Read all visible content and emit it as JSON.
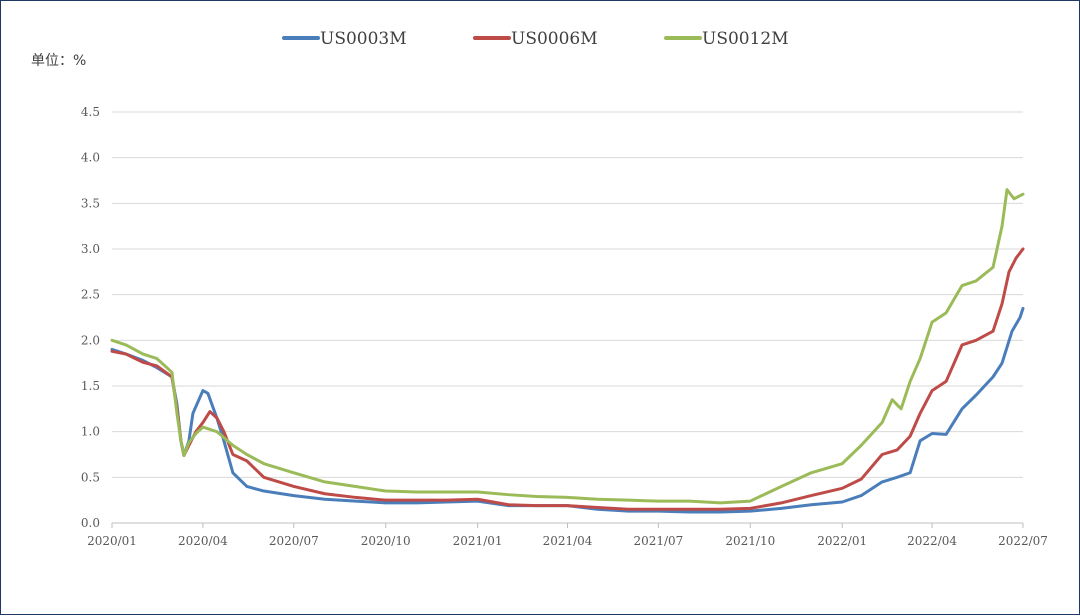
{
  "chart_data": {
    "type": "line",
    "title": "",
    "unit_label": "单位：%",
    "ylabel": "",
    "xlabel": "",
    "ylim": [
      0,
      4.5
    ],
    "y_ticks": [
      "0.0",
      "0.5",
      "1.0",
      "1.5",
      "2.0",
      "2.5",
      "3.0",
      "3.5",
      "4.0",
      "4.5"
    ],
    "x_range": [
      "2020-01-01",
      "2022-07-01"
    ],
    "x_ticks": [
      {
        "date": "2020-01-01",
        "label": "2020/01"
      },
      {
        "date": "2020-04-01",
        "label": "2020/04"
      },
      {
        "date": "2020-07-01",
        "label": "2020/07"
      },
      {
        "date": "2020-10-01",
        "label": "2020/10"
      },
      {
        "date": "2021-01-01",
        "label": "2021/01"
      },
      {
        "date": "2021-04-01",
        "label": "2021/04"
      },
      {
        "date": "2021-07-01",
        "label": "2021/07"
      },
      {
        "date": "2021-10-01",
        "label": "2021/10"
      },
      {
        "date": "2022-01-01",
        "label": "2022/01"
      },
      {
        "date": "2022-04-01",
        "label": "2022/04"
      },
      {
        "date": "2022-07-01",
        "label": "2022/07"
      }
    ],
    "grid": true,
    "legend_position": "top-center",
    "series": [
      {
        "name": "US0003M",
        "color": "#4a7ebb",
        "points": [
          [
            "2020-01-01",
            1.9
          ],
          [
            "2020-01-15",
            1.85
          ],
          [
            "2020-02-01",
            1.78
          ],
          [
            "2020-02-15",
            1.7
          ],
          [
            "2020-03-01",
            1.6
          ],
          [
            "2020-03-06",
            1.3
          ],
          [
            "2020-03-10",
            0.9
          ],
          [
            "2020-03-13",
            0.74
          ],
          [
            "2020-03-18",
            0.9
          ],
          [
            "2020-03-22",
            1.2
          ],
          [
            "2020-03-28",
            1.35
          ],
          [
            "2020-04-01",
            1.45
          ],
          [
            "2020-04-06",
            1.42
          ],
          [
            "2020-04-15",
            1.15
          ],
          [
            "2020-04-22",
            0.9
          ],
          [
            "2020-05-01",
            0.55
          ],
          [
            "2020-05-15",
            0.4
          ],
          [
            "2020-06-01",
            0.35
          ],
          [
            "2020-07-01",
            0.3
          ],
          [
            "2020-08-01",
            0.26
          ],
          [
            "2020-09-01",
            0.24
          ],
          [
            "2020-10-01",
            0.22
          ],
          [
            "2020-11-01",
            0.22
          ],
          [
            "2020-12-01",
            0.23
          ],
          [
            "2021-01-01",
            0.24
          ],
          [
            "2021-02-01",
            0.19
          ],
          [
            "2021-03-01",
            0.19
          ],
          [
            "2021-04-01",
            0.19
          ],
          [
            "2021-05-01",
            0.15
          ],
          [
            "2021-06-01",
            0.13
          ],
          [
            "2021-07-01",
            0.13
          ],
          [
            "2021-08-01",
            0.12
          ],
          [
            "2021-09-01",
            0.12
          ],
          [
            "2021-10-01",
            0.13
          ],
          [
            "2021-11-01",
            0.16
          ],
          [
            "2021-12-01",
            0.2
          ],
          [
            "2022-01-01",
            0.23
          ],
          [
            "2022-01-20",
            0.3
          ],
          [
            "2022-02-10",
            0.45
          ],
          [
            "2022-02-25",
            0.5
          ],
          [
            "2022-03-10",
            0.55
          ],
          [
            "2022-03-20",
            0.9
          ],
          [
            "2022-04-01",
            0.98
          ],
          [
            "2022-04-15",
            0.97
          ],
          [
            "2022-05-01",
            1.25
          ],
          [
            "2022-05-15",
            1.4
          ],
          [
            "2022-06-01",
            1.6
          ],
          [
            "2022-06-10",
            1.75
          ],
          [
            "2022-06-20",
            2.1
          ],
          [
            "2022-06-28",
            2.25
          ],
          [
            "2022-07-01",
            2.35
          ]
        ]
      },
      {
        "name": "US0006M",
        "color": "#be4b48",
        "points": [
          [
            "2020-01-01",
            1.88
          ],
          [
            "2020-01-15",
            1.85
          ],
          [
            "2020-02-01",
            1.76
          ],
          [
            "2020-02-15",
            1.72
          ],
          [
            "2020-03-01",
            1.6
          ],
          [
            "2020-03-06",
            1.25
          ],
          [
            "2020-03-10",
            0.9
          ],
          [
            "2020-03-13",
            0.74
          ],
          [
            "2020-03-18",
            0.85
          ],
          [
            "2020-03-25",
            1.0
          ],
          [
            "2020-04-01",
            1.1
          ],
          [
            "2020-04-08",
            1.22
          ],
          [
            "2020-04-15",
            1.15
          ],
          [
            "2020-04-22",
            1.0
          ],
          [
            "2020-05-01",
            0.75
          ],
          [
            "2020-05-15",
            0.68
          ],
          [
            "2020-06-01",
            0.5
          ],
          [
            "2020-07-01",
            0.4
          ],
          [
            "2020-08-01",
            0.32
          ],
          [
            "2020-09-01",
            0.28
          ],
          [
            "2020-10-01",
            0.25
          ],
          [
            "2020-11-01",
            0.25
          ],
          [
            "2020-12-01",
            0.25
          ],
          [
            "2021-01-01",
            0.26
          ],
          [
            "2021-02-01",
            0.2
          ],
          [
            "2021-03-01",
            0.19
          ],
          [
            "2021-04-01",
            0.19
          ],
          [
            "2021-05-01",
            0.17
          ],
          [
            "2021-06-01",
            0.15
          ],
          [
            "2021-07-01",
            0.15
          ],
          [
            "2021-08-01",
            0.15
          ],
          [
            "2021-09-01",
            0.15
          ],
          [
            "2021-10-01",
            0.16
          ],
          [
            "2021-11-01",
            0.22
          ],
          [
            "2021-12-01",
            0.3
          ],
          [
            "2022-01-01",
            0.38
          ],
          [
            "2022-01-20",
            0.48
          ],
          [
            "2022-02-10",
            0.75
          ],
          [
            "2022-02-25",
            0.8
          ],
          [
            "2022-03-10",
            0.95
          ],
          [
            "2022-03-20",
            1.2
          ],
          [
            "2022-04-01",
            1.45
          ],
          [
            "2022-04-15",
            1.55
          ],
          [
            "2022-05-01",
            1.95
          ],
          [
            "2022-05-15",
            2.0
          ],
          [
            "2022-06-01",
            2.1
          ],
          [
            "2022-06-10",
            2.4
          ],
          [
            "2022-06-17",
            2.75
          ],
          [
            "2022-06-24",
            2.9
          ],
          [
            "2022-07-01",
            3.0
          ]
        ]
      },
      {
        "name": "US0012M",
        "color": "#9bbb59",
        "points": [
          [
            "2020-01-01",
            2.0
          ],
          [
            "2020-01-15",
            1.95
          ],
          [
            "2020-02-01",
            1.85
          ],
          [
            "2020-02-15",
            1.8
          ],
          [
            "2020-03-01",
            1.65
          ],
          [
            "2020-03-06",
            1.2
          ],
          [
            "2020-03-10",
            0.9
          ],
          [
            "2020-03-13",
            0.74
          ],
          [
            "2020-03-18",
            0.88
          ],
          [
            "2020-03-25",
            0.98
          ],
          [
            "2020-04-01",
            1.05
          ],
          [
            "2020-04-15",
            1.0
          ],
          [
            "2020-05-01",
            0.85
          ],
          [
            "2020-05-15",
            0.75
          ],
          [
            "2020-06-01",
            0.65
          ],
          [
            "2020-07-01",
            0.55
          ],
          [
            "2020-08-01",
            0.45
          ],
          [
            "2020-09-01",
            0.4
          ],
          [
            "2020-10-01",
            0.35
          ],
          [
            "2020-11-01",
            0.34
          ],
          [
            "2020-12-01",
            0.34
          ],
          [
            "2021-01-01",
            0.34
          ],
          [
            "2021-02-01",
            0.31
          ],
          [
            "2021-03-01",
            0.29
          ],
          [
            "2021-04-01",
            0.28
          ],
          [
            "2021-05-01",
            0.26
          ],
          [
            "2021-06-01",
            0.25
          ],
          [
            "2021-07-01",
            0.24
          ],
          [
            "2021-08-01",
            0.24
          ],
          [
            "2021-09-01",
            0.22
          ],
          [
            "2021-10-01",
            0.24
          ],
          [
            "2021-11-01",
            0.4
          ],
          [
            "2021-12-01",
            0.55
          ],
          [
            "2022-01-01",
            0.65
          ],
          [
            "2022-01-20",
            0.85
          ],
          [
            "2022-02-10",
            1.1
          ],
          [
            "2022-02-20",
            1.35
          ],
          [
            "2022-03-01",
            1.25
          ],
          [
            "2022-03-10",
            1.55
          ],
          [
            "2022-03-20",
            1.8
          ],
          [
            "2022-04-01",
            2.2
          ],
          [
            "2022-04-15",
            2.3
          ],
          [
            "2022-05-01",
            2.6
          ],
          [
            "2022-05-15",
            2.65
          ],
          [
            "2022-06-01",
            2.8
          ],
          [
            "2022-06-10",
            3.25
          ],
          [
            "2022-06-15",
            3.65
          ],
          [
            "2022-06-22",
            3.55
          ],
          [
            "2022-07-01",
            3.6
          ]
        ]
      }
    ]
  }
}
